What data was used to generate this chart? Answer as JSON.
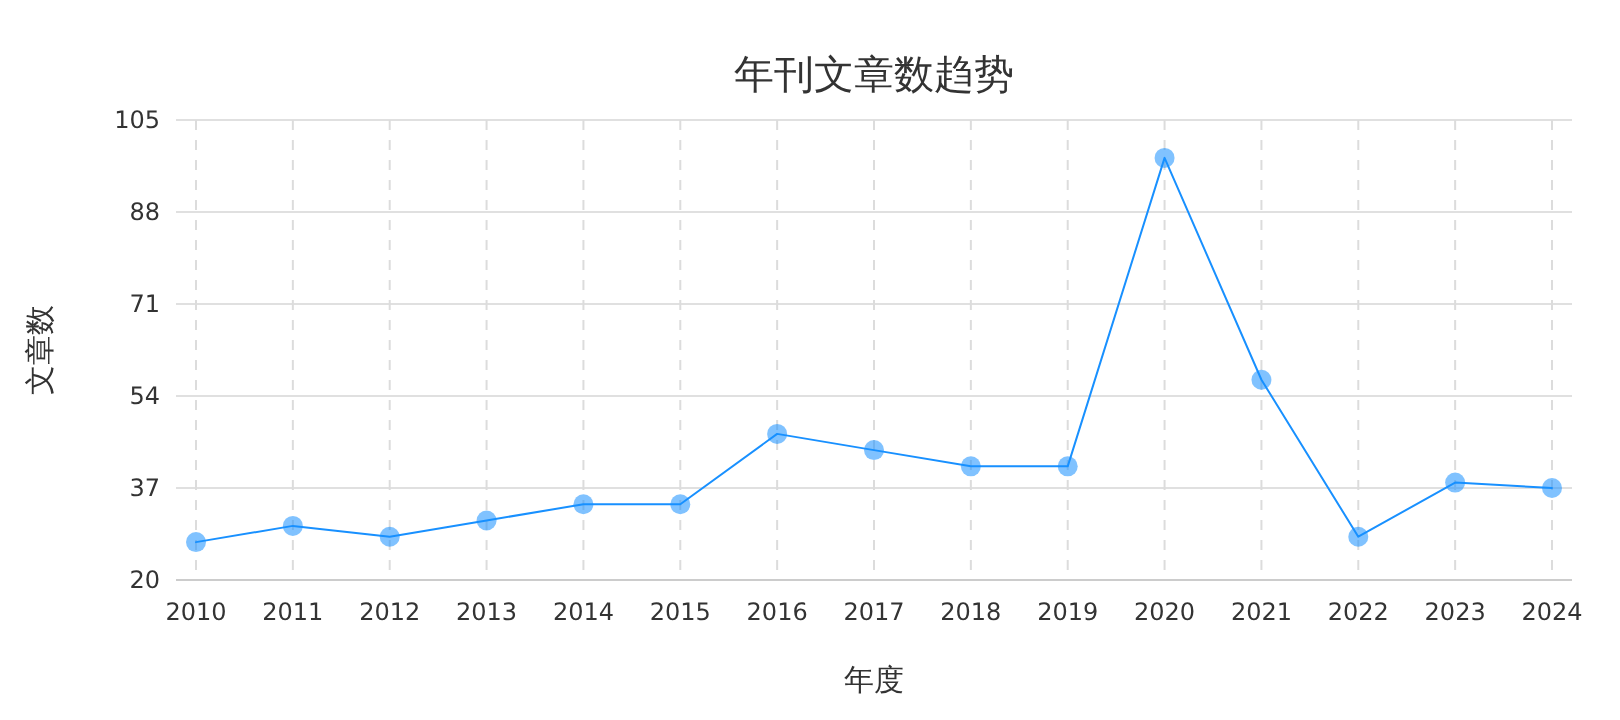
{
  "chart_data": {
    "type": "line",
    "title": "年刊文章数趋势",
    "xlabel": "年度",
    "ylabel": "文章数",
    "categories": [
      "2010",
      "2011",
      "2012",
      "2013",
      "2014",
      "2015",
      "2016",
      "2017",
      "2018",
      "2019",
      "2020",
      "2021",
      "2022",
      "2023",
      "2024"
    ],
    "series": [
      {
        "color": "#1890ff",
        "values": [
          27,
          30,
          28,
          31,
          34,
          34,
          47,
          44,
          41,
          41,
          98,
          57,
          28,
          38,
          37
        ]
      }
    ],
    "ylim": [
      20,
      105
    ],
    "yticks": [
      20,
      37,
      54,
      71,
      88,
      105
    ],
    "grid": true,
    "marker": "circle",
    "line_style": "solid"
  }
}
